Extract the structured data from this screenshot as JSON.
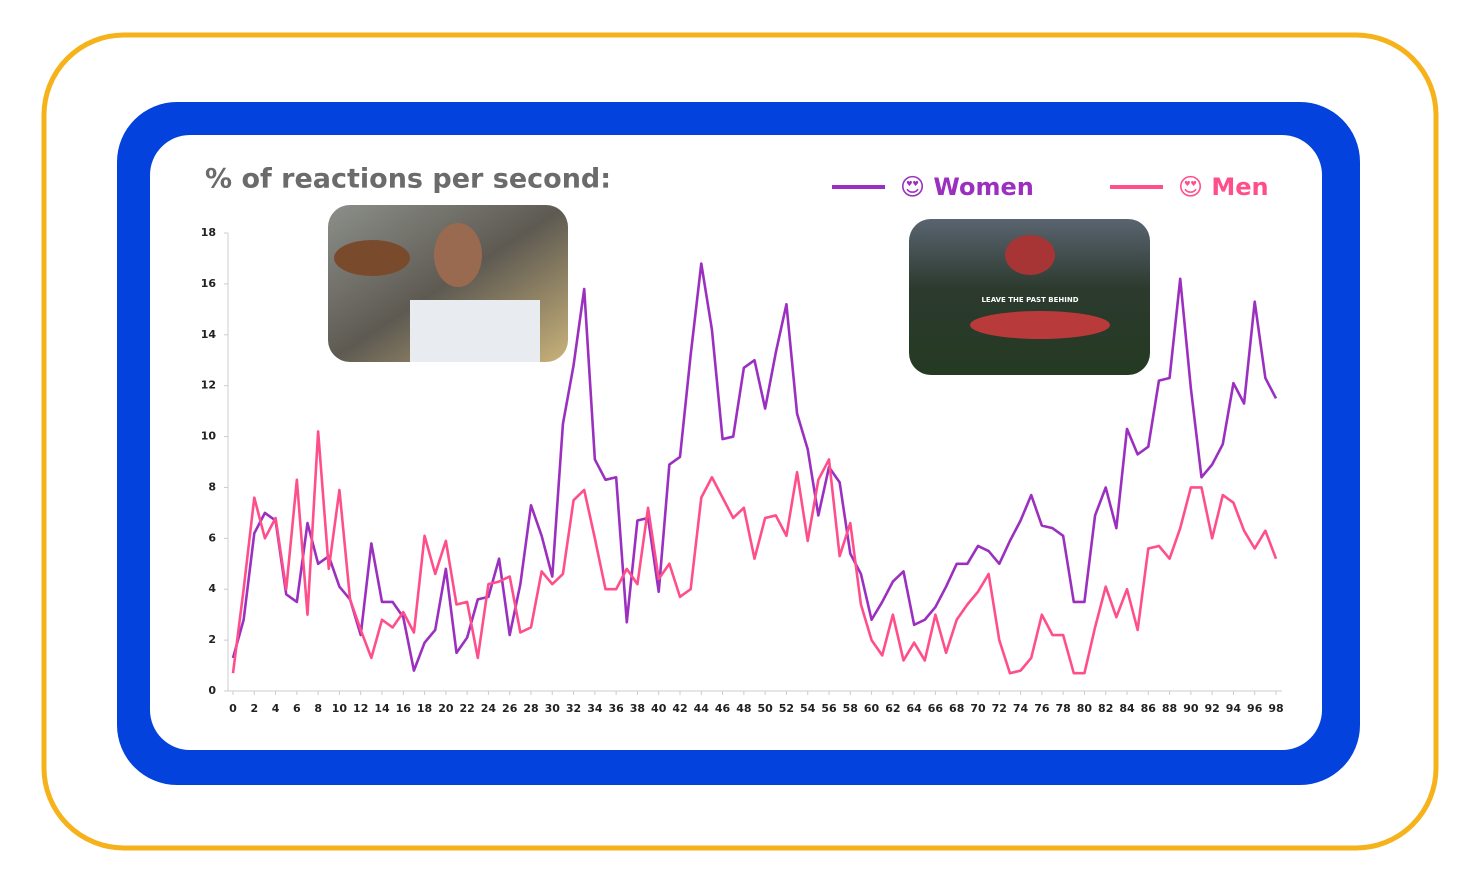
{
  "chart_data": {
    "type": "line",
    "title": "% of reactions per second:",
    "x": [
      0,
      1,
      2,
      3,
      4,
      5,
      6,
      7,
      8,
      9,
      10,
      11,
      12,
      13,
      14,
      15,
      16,
      17,
      18,
      19,
      20,
      21,
      22,
      23,
      24,
      25,
      26,
      27,
      28,
      29,
      30,
      31,
      32,
      33,
      34,
      35,
      36,
      37,
      38,
      39,
      40,
      41,
      42,
      43,
      44,
      45,
      46,
      47,
      48,
      49,
      50,
      51,
      52,
      53,
      54,
      55,
      56,
      57,
      58,
      59,
      60,
      61,
      62,
      63,
      64,
      65,
      66,
      67,
      68,
      69,
      70,
      71,
      72,
      73,
      74,
      75,
      76,
      77,
      78,
      79,
      80,
      81,
      82,
      83,
      84,
      85,
      86,
      87,
      88,
      89,
      90,
      91,
      92,
      93,
      94,
      95,
      96,
      97,
      98
    ],
    "series": [
      {
        "name": "😍 Women",
        "color": "#9b30c0",
        "values": [
          1.3,
          2.8,
          6.2,
          7.0,
          6.7,
          3.8,
          3.5,
          6.6,
          5.0,
          5.3,
          4.1,
          3.6,
          2.2,
          5.8,
          3.5,
          3.5,
          2.9,
          0.8,
          1.9,
          2.4,
          4.8,
          1.5,
          2.1,
          3.6,
          3.7,
          5.2,
          2.2,
          4.2,
          7.3,
          6.1,
          4.5,
          10.5,
          12.8,
          15.8,
          9.1,
          8.3,
          8.4,
          2.7,
          6.7,
          6.8,
          3.9,
          8.9,
          9.2,
          13.2,
          16.8,
          14.2,
          9.9,
          10.0,
          12.7,
          13.0,
          11.1,
          13.3,
          15.2,
          10.9,
          9.5,
          6.9,
          8.8,
          8.2,
          5.4,
          4.6,
          2.8,
          3.5,
          4.3,
          4.7,
          2.6,
          2.8,
          3.3,
          4.1,
          5.0,
          5.0,
          5.7,
          5.5,
          5.0,
          5.9,
          6.7,
          7.7,
          6.5,
          6.4,
          6.1,
          3.5,
          3.5,
          6.9,
          8.0,
          6.4,
          10.3,
          9.3,
          9.6,
          12.2,
          12.3,
          16.2,
          11.9,
          8.4,
          8.9,
          9.7,
          12.1,
          11.3,
          15.3,
          12.3,
          11.5
        ]
      },
      {
        "name": "😍 Men",
        "color": "#ff4f8b",
        "values": [
          0.7,
          4.0,
          7.6,
          6.0,
          6.8,
          4.0,
          8.3,
          3.0,
          10.2,
          4.8,
          7.9,
          3.6,
          2.4,
          1.3,
          2.8,
          2.5,
          3.1,
          2.3,
          6.1,
          4.6,
          5.9,
          3.4,
          3.5,
          1.3,
          4.2,
          4.3,
          4.5,
          2.3,
          2.5,
          4.7,
          4.2,
          4.6,
          7.5,
          7.9,
          6.0,
          4.0,
          4.0,
          4.8,
          4.2,
          7.2,
          4.4,
          5.0,
          3.7,
          4.0,
          7.6,
          8.4,
          7.6,
          6.8,
          7.2,
          5.2,
          6.8,
          6.9,
          6.1,
          8.6,
          5.9,
          8.3,
          9.1,
          5.3,
          6.6,
          3.4,
          2.0,
          1.4,
          3.0,
          1.2,
          1.9,
          1.2,
          3.0,
          1.5,
          2.8,
          3.4,
          3.9,
          4.6,
          2.0,
          0.7,
          0.8,
          1.3,
          3.0,
          2.2,
          2.2,
          0.7,
          0.7,
          2.5,
          4.1,
          2.9,
          4.0,
          2.4,
          5.6,
          5.7,
          5.2,
          6.4,
          8.0,
          8.0,
          6.0,
          7.7,
          7.4,
          6.3,
          5.6,
          6.3,
          5.2
        ]
      }
    ],
    "xlim": [
      0,
      98
    ],
    "xticks": [
      0,
      2,
      4,
      6,
      8,
      10,
      12,
      14,
      16,
      18,
      20,
      22,
      24,
      26,
      28,
      30,
      32,
      34,
      36,
      38,
      40,
      42,
      44,
      46,
      48,
      50,
      52,
      54,
      56,
      58,
      60,
      62,
      64,
      66,
      68,
      70,
      72,
      74,
      76,
      78,
      80,
      82,
      84,
      86,
      88,
      90,
      92,
      94,
      96,
      98
    ],
    "ylim": [
      0,
      18
    ],
    "yticks": [
      0,
      2,
      4,
      6,
      8,
      10,
      12,
      14,
      16,
      18
    ],
    "grid": false,
    "legend": "top-right",
    "annotations": [
      "LEAVE THE PAST BEHIND"
    ]
  }
}
